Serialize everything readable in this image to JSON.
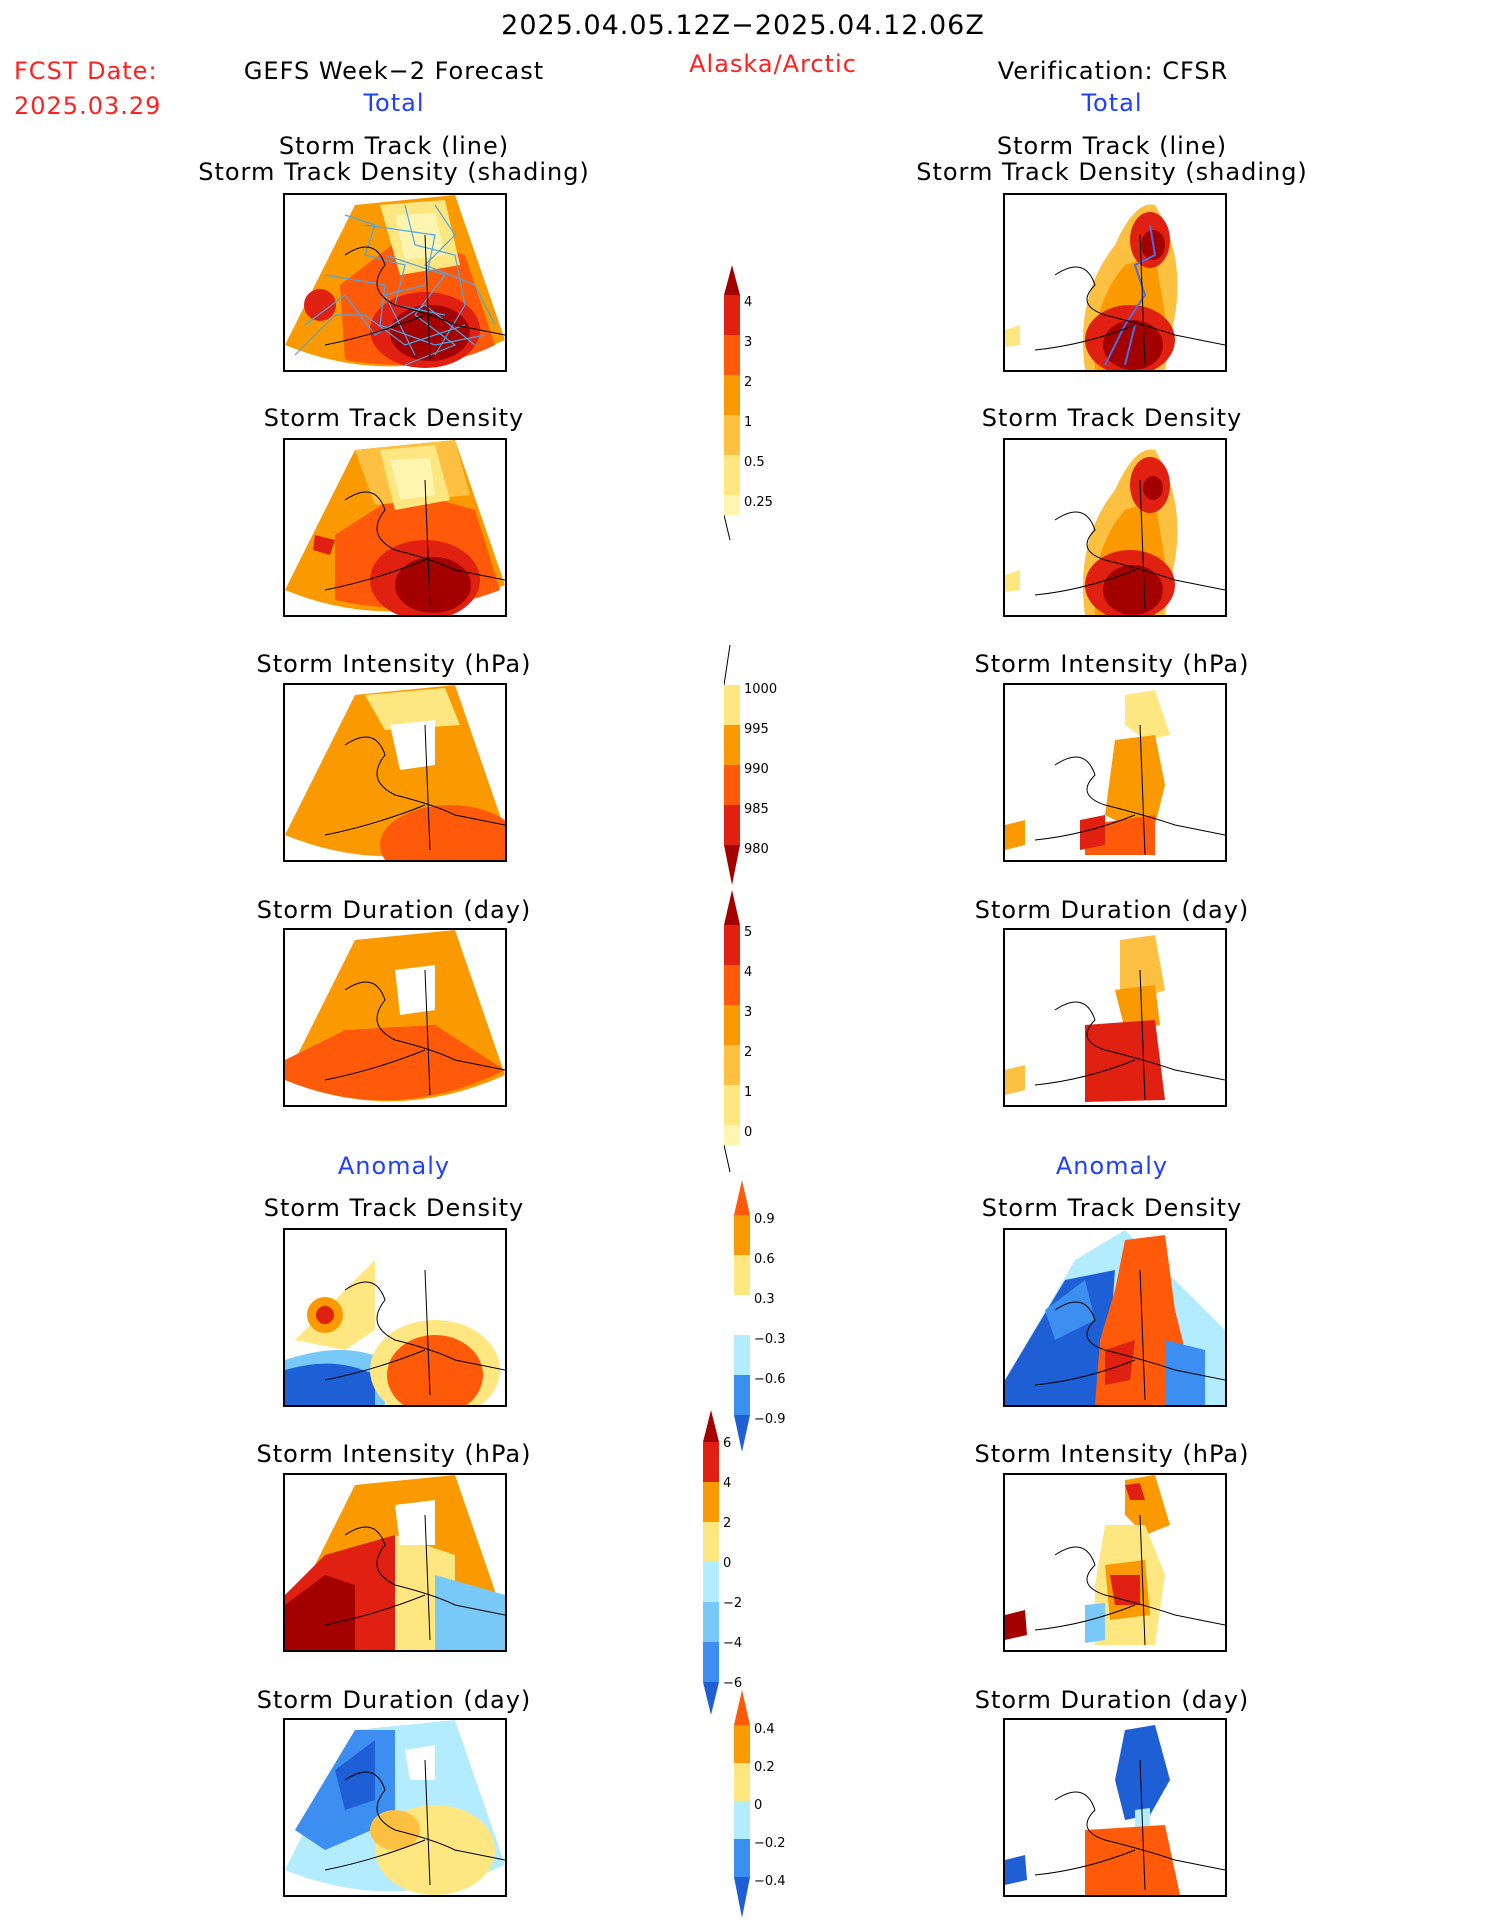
{
  "header": {
    "date_range": "2025.04.05.12Z−2025.04.12.06Z",
    "fcst_date_label": "FCST Date:",
    "fcst_date_value": "2025.03.29",
    "left_title": "GEFS Week−2 Forecast",
    "region": "Alaska/Arctic",
    "right_title": "Verification: CFSR",
    "left_sub": "Total",
    "right_sub": "Total"
  },
  "panels": {
    "track": "Storm Track (line)",
    "track2": "Storm Track Density (shading)",
    "density": "Storm Track Density",
    "intensity": "Storm Intensity (hPa)",
    "duration": "Storm Duration (day)",
    "anomaly": "Anomaly"
  },
  "colorbars": {
    "density_total": [
      "4",
      "3",
      "2",
      "1",
      "0.5",
      "0.25"
    ],
    "intensity_total": [
      "1000",
      "995",
      "990",
      "985",
      "980"
    ],
    "duration_total": [
      "5",
      "4",
      "3",
      "2",
      "1",
      "0"
    ],
    "density_anom": [
      "0.9",
      "0.6",
      "0.3",
      "−0.3",
      "−0.6",
      "−0.9"
    ],
    "intensity_anom": [
      "6",
      "4",
      "2",
      "0",
      "−2",
      "−4",
      "−6"
    ],
    "duration_anom": [
      "0.4",
      "0.2",
      "0",
      "−0.2",
      "−0.4"
    ]
  },
  "colors": {
    "title_red": "#ff2020",
    "title_blue": "#2040ff",
    "darkred": "#a50000",
    "red": "#e02010",
    "redorange": "#ff5a0a",
    "orange": "#fb9a00",
    "lightorange": "#fdc040",
    "yellow": "#fee680",
    "paleyellow": "#fff5b0",
    "lightblue": "#b4ecff",
    "skyblue": "#78c8f8",
    "blue": "#3c8ef0",
    "darkblue": "#1e5fd6"
  }
}
